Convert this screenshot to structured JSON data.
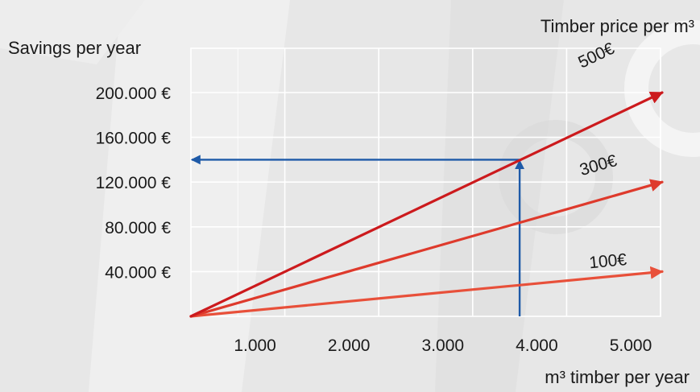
{
  "chart_data": {
    "type": "line",
    "title": "",
    "xlabel": "m³ timber per year",
    "ylabel": "Savings per year",
    "legend_title": "Timber price per m³",
    "xlim": [
      0,
      5000
    ],
    "ylim": [
      0,
      200000
    ],
    "x_ticks": [
      1000,
      2000,
      3000,
      4000,
      5000
    ],
    "x_tick_labels": [
      "1.000",
      "2.000",
      "3.000",
      "4.000",
      "5.000"
    ],
    "y_ticks": [
      40000,
      80000,
      120000,
      160000,
      200000
    ],
    "y_tick_labels": [
      "40.000 €",
      "80.000 €",
      "120.000 €",
      "160.000 €",
      "200.000 €"
    ],
    "grid": true,
    "series": [
      {
        "name": "100€",
        "x": [
          0,
          5000
        ],
        "y": [
          0,
          40000
        ],
        "color": "#e8503a"
      },
      {
        "name": "300€",
        "x": [
          0,
          5000
        ],
        "y": [
          0,
          120000
        ],
        "color": "#de3a2c"
      },
      {
        "name": "500€",
        "x": [
          0,
          5000
        ],
        "y": [
          0,
          200000
        ],
        "color": "#cc1a1d"
      }
    ],
    "annotation": {
      "x": 3500,
      "y": 140000,
      "color": "#1e5aa8"
    }
  }
}
